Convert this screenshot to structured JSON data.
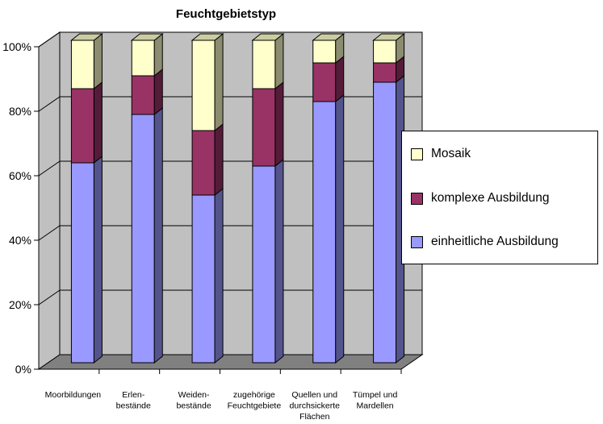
{
  "chart_data": {
    "type": "bar",
    "stacked": true,
    "percent_stacked": true,
    "three_d": true,
    "title": "Feuchtgebietstyp",
    "categories": [
      [
        "Moorbildungen"
      ],
      [
        "Erlen-",
        "bestände"
      ],
      [
        "Weiden-",
        "bestände"
      ],
      [
        "zugehörige",
        "Feuchtgebiete"
      ],
      [
        "Quellen und",
        "durchsickerte",
        "Flächen"
      ],
      [
        "Tümpel und",
        "Mardellen"
      ]
    ],
    "series": [
      {
        "name": "einheitliche Ausbildung",
        "color": "#9999FF",
        "values": [
          62,
          77,
          52,
          61,
          81,
          87
        ]
      },
      {
        "name": "komplexe Ausbildung",
        "color": "#993366",
        "values": [
          23,
          12,
          20,
          24,
          12,
          6
        ]
      },
      {
        "name": "Mosaik",
        "color": "#FFFFCC",
        "values": [
          15,
          11,
          28,
          15,
          7,
          7
        ]
      }
    ],
    "y_ticks": [
      "0%",
      "20%",
      "40%",
      "60%",
      "80%",
      "100%"
    ],
    "ylim": [
      0,
      100
    ],
    "grid": true,
    "wall_color": "#C0C0C0",
    "floor_color": "#808080",
    "legend_position": "right",
    "legend_order": [
      "Mosaik",
      "komplexe Ausbildung",
      "einheitliche Ausbildung"
    ]
  }
}
